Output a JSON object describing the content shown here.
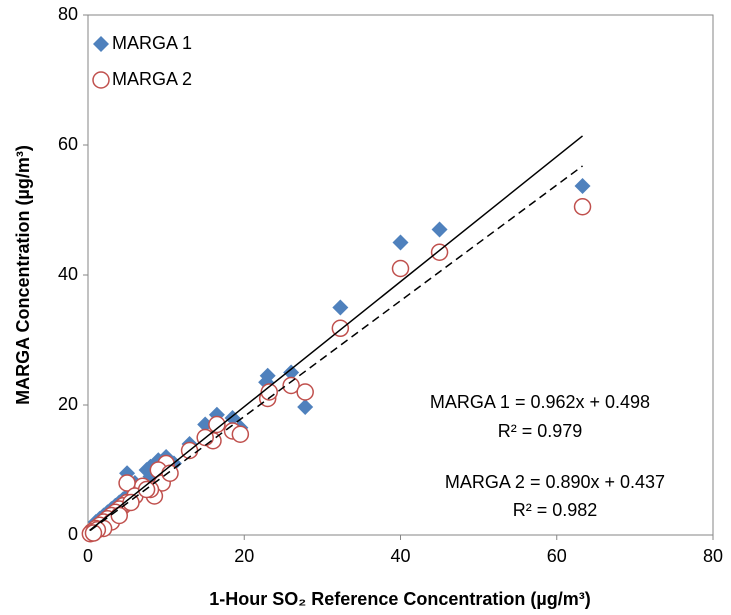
{
  "chart_data": {
    "type": "scatter",
    "xlabel": "1-Hour SO₂ Reference Concentration (µg/m³)",
    "ylabel": "MARGA Concentration (µg/m³)",
    "xlim": [
      0,
      80
    ],
    "ylim": [
      0,
      80
    ],
    "xticks": [
      0,
      20,
      40,
      60,
      80
    ],
    "yticks": [
      0,
      20,
      40,
      60,
      80
    ],
    "legend": "upper left",
    "series": [
      {
        "name": "MARGA 1",
        "color": "#4f81bd",
        "marker": "diamond",
        "x": [
          63.3,
          45,
          40,
          32.3,
          26,
          27.8,
          23,
          22.8,
          18.5,
          19.5,
          16.5,
          15,
          16,
          13,
          10,
          9,
          9.5,
          11,
          8,
          7.5,
          5,
          6,
          7,
          5,
          4.5,
          4,
          3.5,
          3,
          2.5,
          2,
          1.5,
          1,
          0.5,
          0.3,
          0.2,
          1,
          2,
          3,
          4,
          6,
          8,
          10,
          2.8,
          3.8,
          1.8,
          0.8
        ],
        "values": [
          53.7,
          47,
          45,
          35,
          25,
          19.7,
          24.5,
          23.5,
          18,
          16.5,
          18.5,
          17,
          15,
          14,
          12,
          11.5,
          10,
          11,
          10.5,
          10,
          9.5,
          8,
          7,
          6,
          5.5,
          5,
          4.5,
          4,
          3.5,
          3,
          2.5,
          2,
          1,
          0.5,
          0.3,
          1.5,
          2.5,
          3.5,
          4.5,
          7,
          9,
          10.5,
          2.8,
          3.8,
          1.8,
          0.9
        ],
        "trendline": {
          "slope": 0.962,
          "intercept": 0.498,
          "color": "#000000",
          "style": "solid"
        }
      },
      {
        "name": "MARGA 2",
        "color": "#c0504d",
        "marker": "circle",
        "x": [
          63.3,
          45,
          40,
          32.3,
          26,
          27.8,
          23,
          23.2,
          18.5,
          19.5,
          16,
          16.5,
          15,
          13,
          10,
          9,
          9.5,
          8.5,
          8,
          7,
          5,
          6,
          5,
          4.5,
          4,
          3.5,
          3,
          2.5,
          2,
          1.5,
          1,
          0.5,
          0.3,
          3,
          4,
          2,
          5.5,
          7.5,
          10.5,
          1.2,
          0.7
        ],
        "values": [
          50.5,
          43.5,
          41,
          31.8,
          23,
          22,
          21,
          22,
          16,
          15.5,
          14.5,
          17,
          15,
          13,
          11,
          10,
          8,
          6,
          7,
          7.5,
          8,
          6,
          5,
          4.5,
          4,
          3.5,
          3,
          2.5,
          2,
          1.5,
          1,
          0.5,
          0.2,
          2,
          3,
          1,
          5,
          7,
          9.5,
          0.8,
          0.3
        ],
        "trendline": {
          "slope": 0.89,
          "intercept": 0.437,
          "color": "#000000",
          "style": "dashed"
        }
      }
    ],
    "annotations": [
      "MARGA 1 = 0.962x + 0.498",
      "R² = 0.979",
      "MARGA 2 = 0.890x + 0.437",
      "R² = 0.982"
    ]
  }
}
